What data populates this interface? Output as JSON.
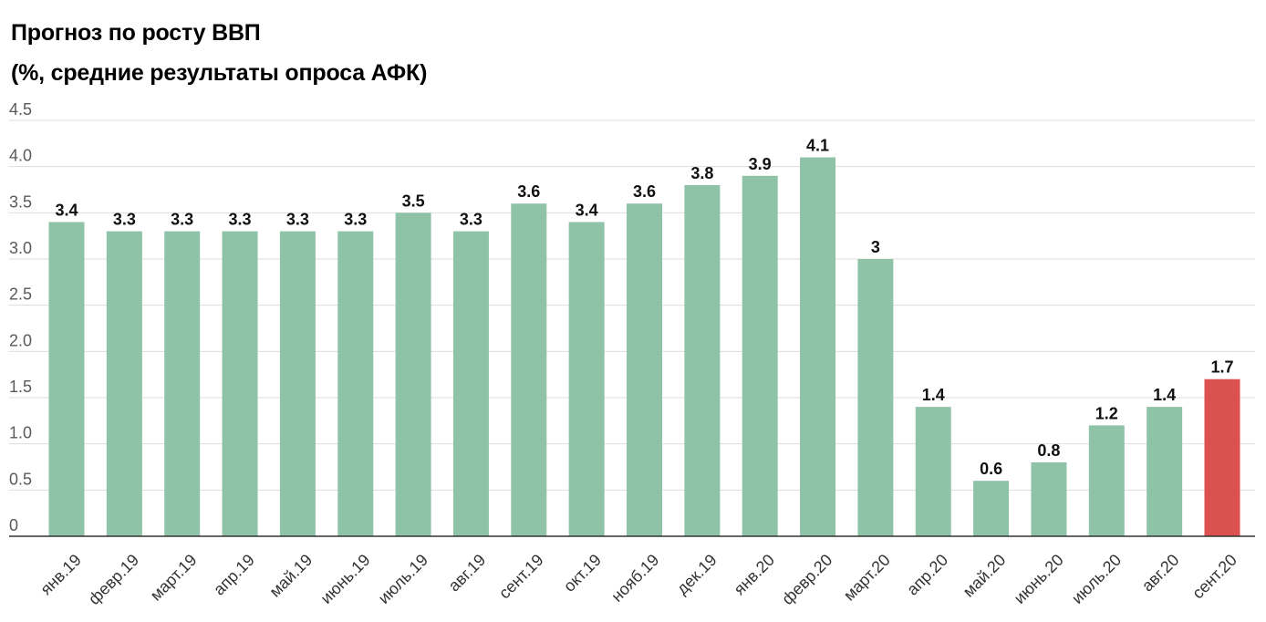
{
  "chart_data": {
    "type": "bar",
    "title": "Прогноз по росту ВВП",
    "subtitle": "(%, средние результаты опроса АФК)",
    "xlabel": "",
    "ylabel": "",
    "ylim": [
      0,
      4.5
    ],
    "yticks": [
      "0",
      "0.5",
      "1.0",
      "1.5",
      "2.0",
      "2.5",
      "3.0",
      "3.5",
      "4.0",
      "4.5"
    ],
    "categories": [
      "янв.19",
      "февр.19",
      "март.19",
      "апр.19",
      "май.19",
      "июнь.19",
      "июль.19",
      "авг.19",
      "сент.19",
      "окт.19",
      "нояб.19",
      "дек.19",
      "янв.20",
      "февр.20",
      "март.20",
      "апр.20",
      "май.20",
      "июнь.20",
      "июль.20",
      "авг.20",
      "сент.20"
    ],
    "values": [
      3.4,
      3.3,
      3.3,
      3.3,
      3.3,
      3.3,
      3.5,
      3.3,
      3.6,
      3.4,
      3.6,
      3.8,
      3.9,
      4.1,
      3,
      1.4,
      0.6,
      0.8,
      1.2,
      1.4,
      1.7
    ],
    "value_labels": [
      "3.4",
      "3.3",
      "3.3",
      "3.3",
      "3.3",
      "3.3",
      "3.5",
      "3.3",
      "3.6",
      "3.4",
      "3.6",
      "3.8",
      "3.9",
      "4.1",
      "3",
      "1.4",
      "0.6",
      "0.8",
      "1.2",
      "1.4",
      "1.7"
    ],
    "grid": true,
    "legend": "none",
    "colors": {
      "bar": "#8fc3a7",
      "highlight": "#da5150",
      "grid": "#dddddd",
      "axis": "#333333"
    },
    "highlight_category": "сент.20"
  }
}
